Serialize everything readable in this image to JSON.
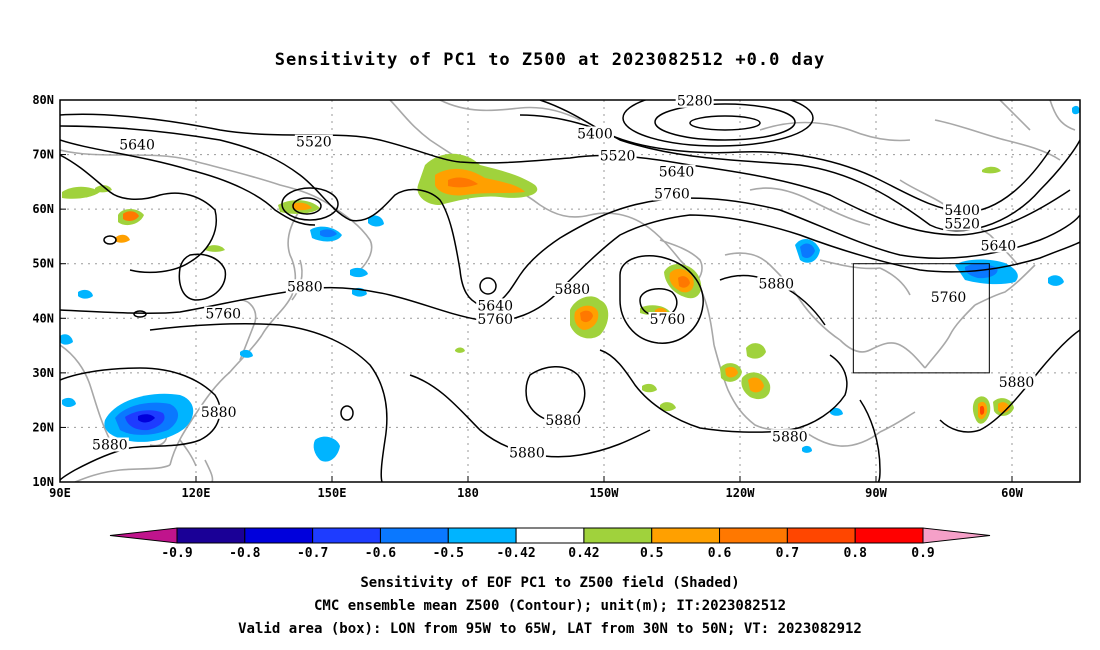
{
  "title": "Sensitivity of PC1 to Z500 at 2023082512 +0.0 day",
  "lat_labels": [
    "80N",
    "70N",
    "60N",
    "50N",
    "40N",
    "30N",
    "20N",
    "10N"
  ],
  "lat_values": [
    80,
    70,
    60,
    50,
    40,
    30,
    20,
    10
  ],
  "lon_labels": [
    "90E",
    "120E",
    "150E",
    "180",
    "150W",
    "120W",
    "90W",
    "60W"
  ],
  "lon_values": [
    90,
    120,
    150,
    180,
    210,
    240,
    270,
    300
  ],
  "extent": {
    "lon_min": 90,
    "lon_max": 315,
    "lat_min": 10,
    "lat_max": 80
  },
  "valid_box": {
    "lon_min": 265,
    "lon_max": 295,
    "lat_min": 30,
    "lat_max": 50
  },
  "contour_labels": [
    {
      "text": "5280",
      "lon": 230,
      "lat": 79.5
    },
    {
      "text": "5400",
      "lon": 208,
      "lat": 73.5
    },
    {
      "text": "5400",
      "lon": 289,
      "lat": 59.5
    },
    {
      "text": "5520",
      "lon": 146,
      "lat": 72
    },
    {
      "text": "5520",
      "lon": 213,
      "lat": 69.5
    },
    {
      "text": "5520",
      "lon": 289,
      "lat": 57
    },
    {
      "text": "5640",
      "lon": 107,
      "lat": 71.5
    },
    {
      "text": "5640",
      "lon": 226,
      "lat": 66.5
    },
    {
      "text": "5640",
      "lon": 297,
      "lat": 53
    },
    {
      "text": "5640",
      "lon": 186,
      "lat": 42
    },
    {
      "text": "5760",
      "lon": 225,
      "lat": 62.5
    },
    {
      "text": "5760",
      "lon": 186,
      "lat": 39.5
    },
    {
      "text": "5760",
      "lon": 224,
      "lat": 39.5
    },
    {
      "text": "5760",
      "lon": 126,
      "lat": 40.5
    },
    {
      "text": "5760",
      "lon": 286,
      "lat": 43.5
    },
    {
      "text": "5880",
      "lon": 144,
      "lat": 45.5
    },
    {
      "text": "5880",
      "lon": 203,
      "lat": 45
    },
    {
      "text": "5880",
      "lon": 248,
      "lat": 46
    },
    {
      "text": "5880",
      "lon": 125,
      "lat": 22.5
    },
    {
      "text": "5880",
      "lon": 201,
      "lat": 21
    },
    {
      "text": "5880",
      "lon": 193,
      "lat": 15
    },
    {
      "text": "5880",
      "lon": 251,
      "lat": 18
    },
    {
      "text": "5880",
      "lon": 301,
      "lat": 28
    },
    {
      "text": "5880",
      "lon": 101,
      "lat": 16.5
    }
  ],
  "colorbar": {
    "labels": [
      "-0.9",
      "-0.8",
      "-0.7",
      "-0.6",
      "-0.5",
      "-0.42",
      "0.42",
      "0.5",
      "0.6",
      "0.7",
      "0.8",
      "0.9"
    ],
    "colors": [
      "#1a0096",
      "#0000dc",
      "#1e3cff",
      "#0a78ff",
      "#00b4ff",
      "#ffffff",
      "#a0d23c",
      "#ffa000",
      "#ff7800",
      "#ff4600",
      "#ff0000"
    ],
    "left_tip_color": "#c0148c",
    "right_tip_color": "#f5a0c8"
  },
  "captions": [
    "Sensitivity of EOF PC1 to Z500 field (Shaded)",
    "CMC ensemble mean Z500 (Contour); unit(m); IT:2023082512",
    "Valid area (box): LON from 95W to 65W, LAT from 30N to 50N; VT: 2023082912"
  ]
}
